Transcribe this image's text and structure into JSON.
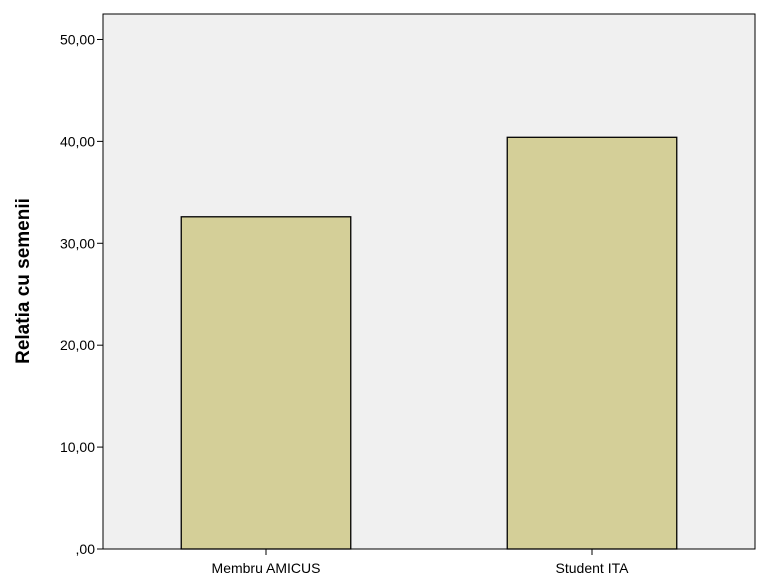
{
  "chart_data": {
    "type": "bar",
    "categories": [
      "Membru AMICUS",
      "Student ITA"
    ],
    "values": [
      32.6,
      40.4
    ],
    "ylabel": "Relatia cu semenii",
    "ylim": [
      0,
      52.5
    ],
    "yticks": [
      0,
      10,
      20,
      30,
      40,
      50
    ],
    "ytick_labels": [
      ",00",
      "10,00",
      "20,00",
      "30,00",
      "40,00",
      "50,00"
    ],
    "grid": false,
    "colors": {
      "bar_fill": "#d4cf98",
      "bar_stroke": "#000000",
      "plot_background": "#f0f0f0"
    }
  }
}
